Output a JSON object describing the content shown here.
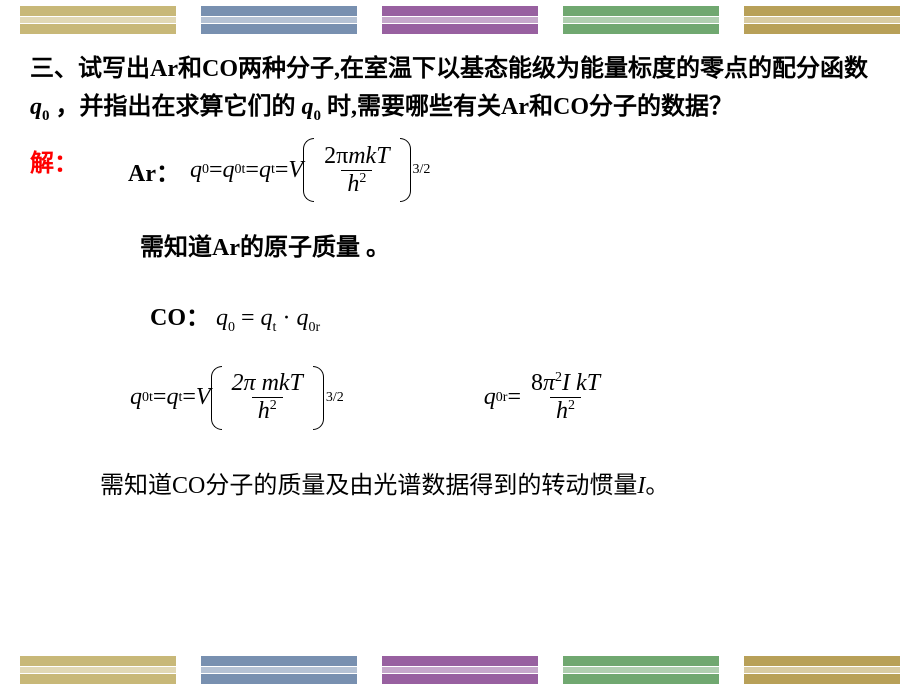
{
  "stripes": {
    "colors": [
      "#c8b878",
      "#7890b0",
      "#9860a0",
      "#70a870",
      "#b8a058"
    ],
    "band_heights": [
      10,
      6,
      10
    ],
    "gap": 1
  },
  "question": {
    "prefix": "三、试写出Ar和CO两种分子,在室温下以基态能级为能量标度的零点的配分函数",
    "q0": "q",
    "q0_sub": "0",
    "mid": "，并指出在求算它们的 ",
    "q0b": "q",
    "q0b_sub": "0",
    "suffix": "时,需要哪些有关Ar和CO分子的数据？"
  },
  "solve": "解：",
  "ar": {
    "label": "Ar：",
    "lhs_q": "q",
    "lhs_s1": "0",
    "eq1": " = ",
    "q0t": "q",
    "q0t_sub": "0t",
    "eq2": " = ",
    "qt": "q",
    "qt_sub": "t",
    "eq3": " = ",
    "V": "V",
    "num_2pi": "2π",
    "num_mkT": "mkT",
    "den_h": "h",
    "den_exp": "2",
    "outer_exp": "3/2"
  },
  "note_ar": "需知道Ar的原子质量 。",
  "co": {
    "label": "CO：",
    "q0": "q",
    "q0_sub": "0",
    "eq": " = ",
    "qt": "q",
    "qt_sub": "t",
    "dot": " · ",
    "q0r": "q",
    "q0r_sub": "0r"
  },
  "eq_t": {
    "lhs_q": "q",
    "lhs_sub": "0t",
    "eq1": " = ",
    "qt": "q",
    "qt_sub": "t",
    "eq2": " = ",
    "V": "V",
    "num": "2π mkT",
    "den_h": "h",
    "den_exp": "2",
    "outer_exp": "3/2"
  },
  "eq_r": {
    "lhs_q": "q",
    "lhs_sub": "0r",
    "eq": " = ",
    "num_8": "8",
    "num_pi": "π",
    "num_pi_exp": "2",
    "num_IkT": "I kT",
    "den_h": "h",
    "den_exp": "2"
  },
  "note_co_a": "需知道CO分子的质量及由光谱数据得到的转动惯量",
  "note_co_I": "I",
  "note_co_b": "。"
}
